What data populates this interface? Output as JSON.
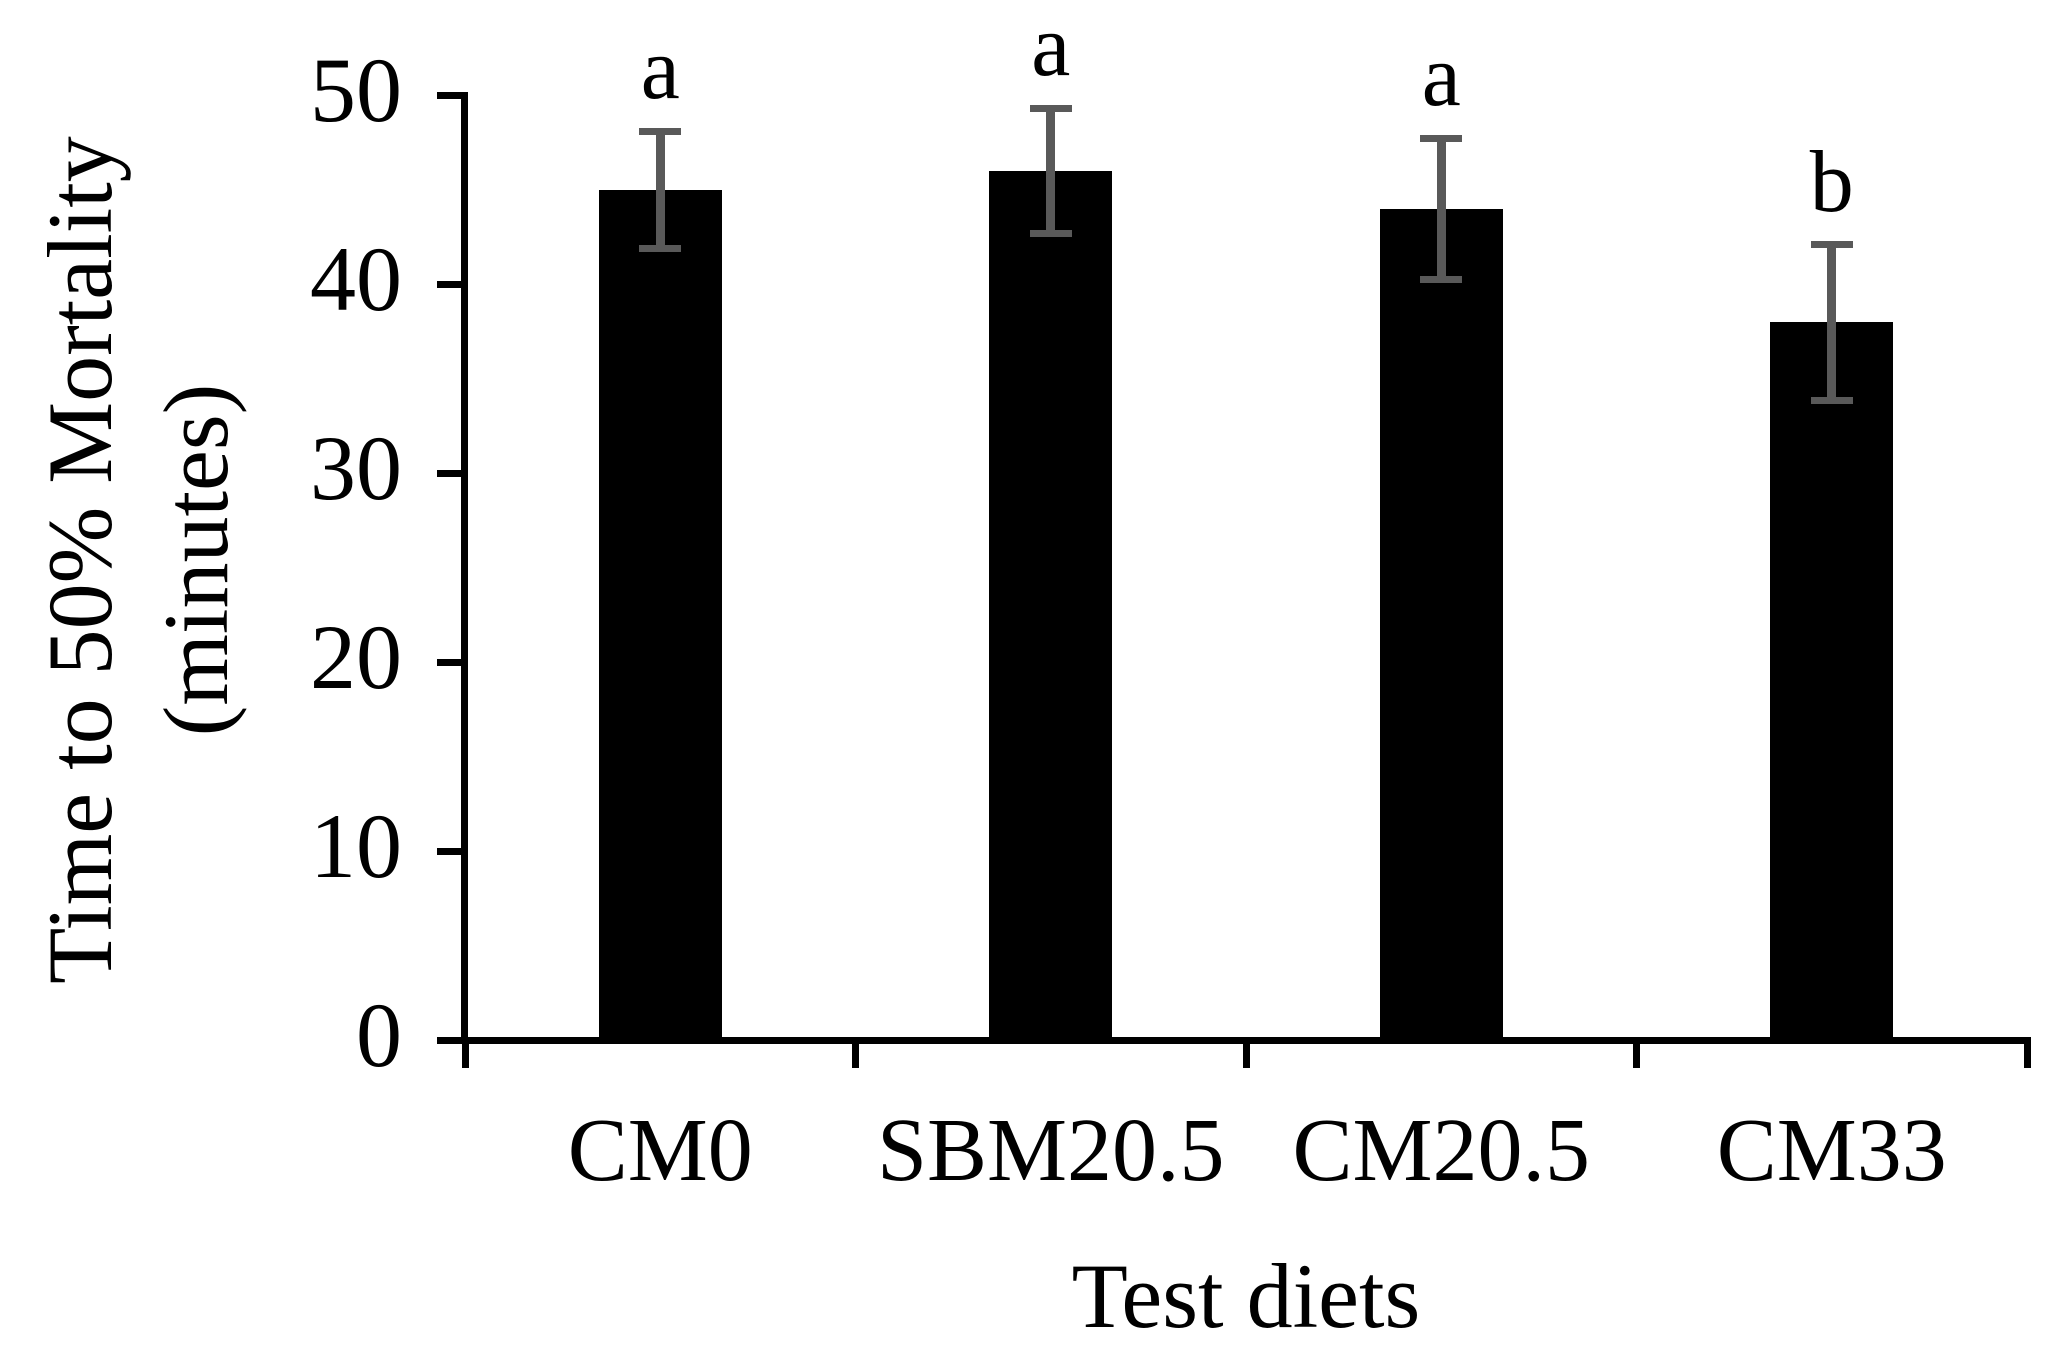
{
  "chart_data": {
    "type": "bar",
    "title": "",
    "categories": [
      "CM0",
      "SBM20.5",
      "CM20.5",
      "CM33"
    ],
    "values": [
      45,
      46,
      44,
      38
    ],
    "error_bars": [
      3.3,
      3.5,
      3.9,
      4.3
    ],
    "sig_letters": [
      "a",
      "a",
      "a",
      "b"
    ],
    "xlabel": "Test diets",
    "ylabel": "Time to 50% Mortality (minutes)",
    "ylabel_lines": [
      "Time to 50% Mortality",
      "(minutes)"
    ],
    "ylim": [
      0,
      50
    ],
    "yticks": [
      50,
      40,
      30,
      20,
      10,
      0
    ],
    "grid": false,
    "legend": "none",
    "bar_color": "#000000",
    "error_bar_color": "#595959",
    "text_color": "#000000",
    "background_color": "#ffffff"
  }
}
